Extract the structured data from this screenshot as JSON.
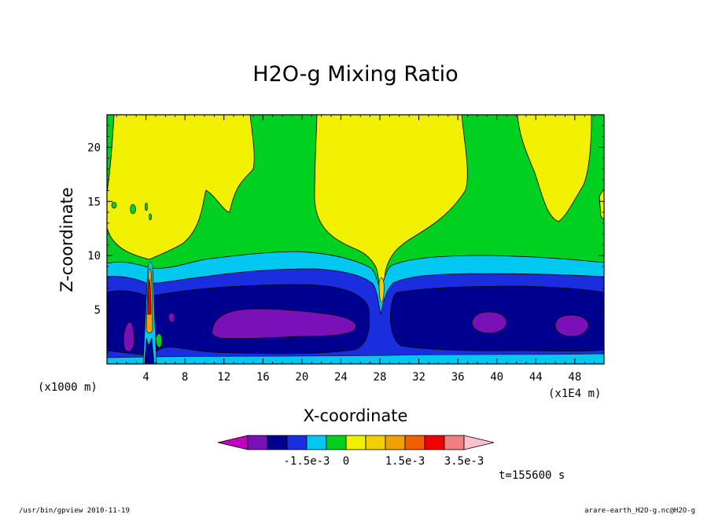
{
  "chart_data": {
    "type": "heatmap",
    "title": "H2O-g Mixing Ratio",
    "xlabel": "X-coordinate",
    "ylabel": "Z-coordinate",
    "x_unit_label": "(x1E4 m)",
    "y_unit_label": "(x1000 m)",
    "xlim": [
      0,
      51
    ],
    "ylim": [
      0,
      23
    ],
    "x_ticks": [
      4,
      8,
      12,
      16,
      20,
      24,
      28,
      32,
      36,
      40,
      44,
      48
    ],
    "y_ticks": [
      5,
      10,
      15,
      20
    ],
    "colorbar": {
      "colors": [
        "#c000c0",
        "#7a10b8",
        "#000090",
        "#1a2ee0",
        "#00c8f0",
        "#00d020",
        "#f0f000",
        "#f0d000",
        "#f0a000",
        "#f06000",
        "#f00000",
        "#f08080",
        "#ffc0d0"
      ],
      "labels": [
        "-1.5e-3",
        "0",
        "1.5e-3",
        "3.5e-3"
      ]
    },
    "annotation_time": "t=155600 s",
    "footer_left": "/usr/bin/gpview   2010-11-19",
    "footer_right": "arare-earth_H2O-g.nc@H2O-g"
  }
}
